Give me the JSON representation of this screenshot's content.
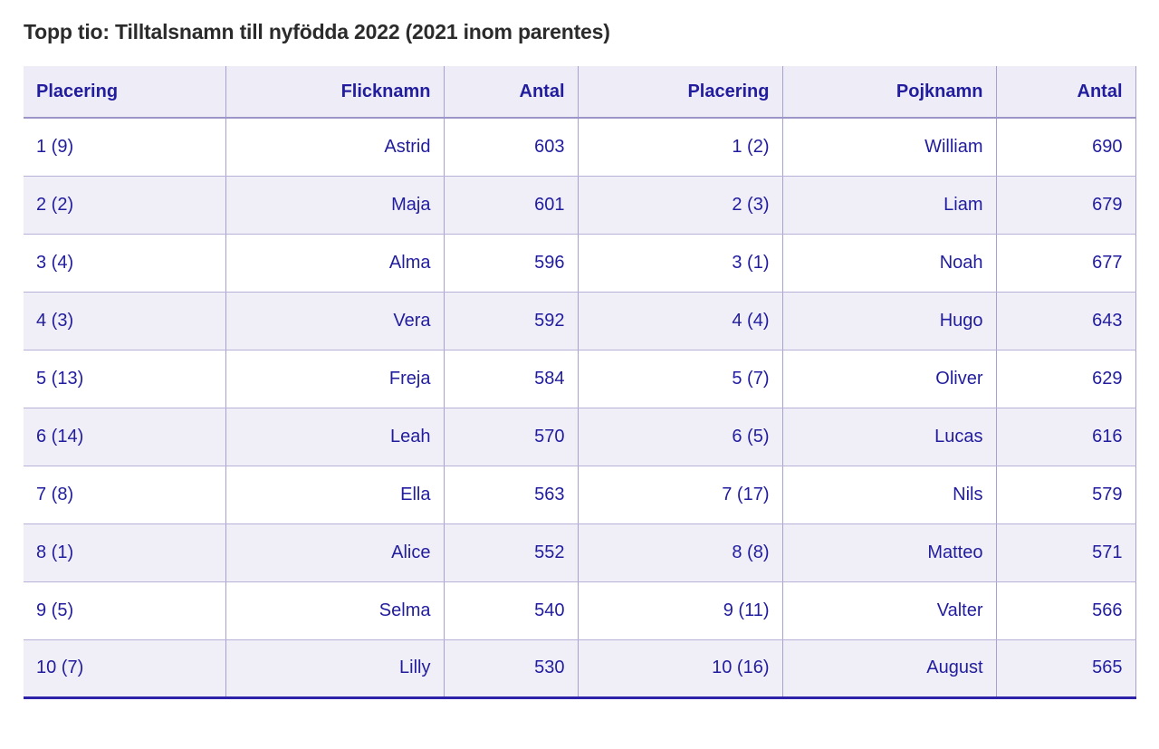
{
  "page": {
    "title": "Topp tio: Tilltalsnamn till nyfödda 2022 (2021 inom parentes)"
  },
  "colors": {
    "cell_text": "#211d9e",
    "title_text": "#2b2b2b",
    "header_bg": "#eeedf7",
    "row_alt_bg": "#f0eff8",
    "border_vertical": "#a7a1cf",
    "border_row": "#b8b2da",
    "border_header_bottom": "#9c95c7",
    "border_table_bottom": "#2e22aa"
  },
  "table": {
    "columns": [
      {
        "label": "Placering",
        "align": "left"
      },
      {
        "label": "Flicknamn",
        "align": "right"
      },
      {
        "label": "Antal",
        "align": "right"
      },
      {
        "label": "Placering",
        "align": "right"
      },
      {
        "label": "Pojknamn",
        "align": "right"
      },
      {
        "label": "Antal",
        "align": "right"
      }
    ],
    "rows": [
      [
        "1 (9)",
        "Astrid",
        "603",
        "1 (2)",
        "William",
        "690"
      ],
      [
        "2 (2)",
        "Maja",
        "601",
        "2 (3)",
        "Liam",
        "679"
      ],
      [
        "3 (4)",
        "Alma",
        "596",
        "3 (1)",
        "Noah",
        "677"
      ],
      [
        "4 (3)",
        "Vera",
        "592",
        "4 (4)",
        "Hugo",
        "643"
      ],
      [
        "5 (13)",
        "Freja",
        "584",
        "5 (7)",
        "Oliver",
        "629"
      ],
      [
        "6 (14)",
        "Leah",
        "570",
        "6 (5)",
        "Lucas",
        "616"
      ],
      [
        "7 (8)",
        "Ella",
        "563",
        "7 (17)",
        "Nils",
        "579"
      ],
      [
        "8 (1)",
        "Alice",
        "552",
        "8 (8)",
        "Matteo",
        "571"
      ],
      [
        "9 (5)",
        "Selma",
        "540",
        "9 (11)",
        "Valter",
        "566"
      ],
      [
        "10 (7)",
        "Lilly",
        "530",
        "10 (16)",
        "August",
        "565"
      ]
    ]
  },
  "chart_data": {
    "type": "table",
    "title": "Topp tio: Tilltalsnamn till nyfödda 2022 (2021 inom parentes)",
    "columns": [
      "Placering",
      "Flicknamn",
      "Antal",
      "Placering",
      "Pojknamn",
      "Antal"
    ],
    "girls": [
      {
        "placering_2022": 1,
        "placering_2021": 9,
        "namn": "Astrid",
        "antal": 603
      },
      {
        "placering_2022": 2,
        "placering_2021": 2,
        "namn": "Maja",
        "antal": 601
      },
      {
        "placering_2022": 3,
        "placering_2021": 4,
        "namn": "Alma",
        "antal": 596
      },
      {
        "placering_2022": 4,
        "placering_2021": 3,
        "namn": "Vera",
        "antal": 592
      },
      {
        "placering_2022": 5,
        "placering_2021": 13,
        "namn": "Freja",
        "antal": 584
      },
      {
        "placering_2022": 6,
        "placering_2021": 14,
        "namn": "Leah",
        "antal": 570
      },
      {
        "placering_2022": 7,
        "placering_2021": 8,
        "namn": "Ella",
        "antal": 563
      },
      {
        "placering_2022": 8,
        "placering_2021": 1,
        "namn": "Alice",
        "antal": 552
      },
      {
        "placering_2022": 9,
        "placering_2021": 5,
        "namn": "Selma",
        "antal": 540
      },
      {
        "placering_2022": 10,
        "placering_2021": 7,
        "namn": "Lilly",
        "antal": 530
      }
    ],
    "boys": [
      {
        "placering_2022": 1,
        "placering_2021": 2,
        "namn": "William",
        "antal": 690
      },
      {
        "placering_2022": 2,
        "placering_2021": 3,
        "namn": "Liam",
        "antal": 679
      },
      {
        "placering_2022": 3,
        "placering_2021": 1,
        "namn": "Noah",
        "antal": 677
      },
      {
        "placering_2022": 4,
        "placering_2021": 4,
        "namn": "Hugo",
        "antal": 643
      },
      {
        "placering_2022": 5,
        "placering_2021": 7,
        "namn": "Oliver",
        "antal": 629
      },
      {
        "placering_2022": 6,
        "placering_2021": 5,
        "namn": "Lucas",
        "antal": 616
      },
      {
        "placering_2022": 7,
        "placering_2021": 17,
        "namn": "Nils",
        "antal": 579
      },
      {
        "placering_2022": 8,
        "placering_2021": 8,
        "namn": "Matteo",
        "antal": 571
      },
      {
        "placering_2022": 9,
        "placering_2021": 11,
        "namn": "Valter",
        "antal": 566
      },
      {
        "placering_2022": 10,
        "placering_2021": 16,
        "namn": "August",
        "antal": 565
      }
    ]
  }
}
